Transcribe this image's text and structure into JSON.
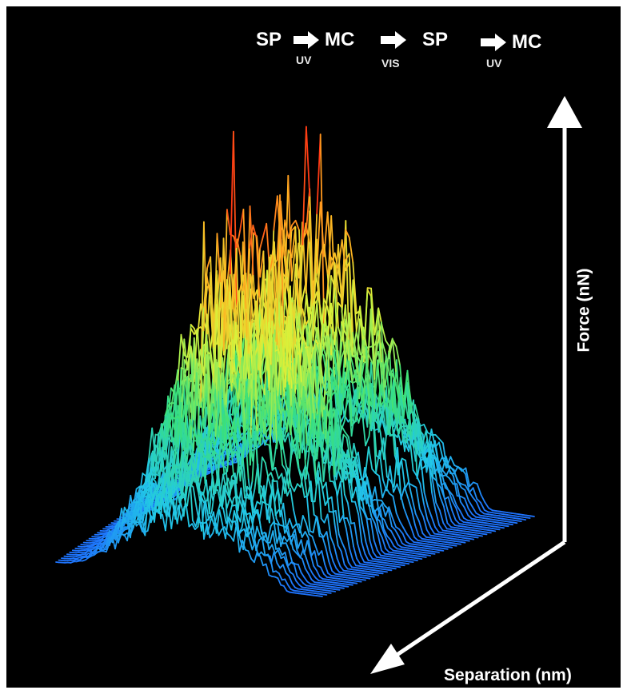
{
  "chart_data": {
    "type": "line",
    "title": "",
    "xlabel": "Separation (nm)",
    "ylabel": "Force (nN)",
    "grid": false,
    "legend": "none",
    "colormap": [
      "#2a1aa8",
      "#1e6cff",
      "#22c8e6",
      "#39e07a",
      "#d9f23a",
      "#ffb020",
      "#ff3a14"
    ],
    "sequence": [
      {
        "state": "SP",
        "stimulus": ""
      },
      {
        "state": "MC",
        "stimulus": "UV"
      },
      {
        "state": "SP",
        "stimulus": "VIS"
      },
      {
        "state": "MC",
        "stimulus": "UV"
      }
    ],
    "peak_force_relative_per_curve": [
      0.22,
      0.25,
      0.27,
      0.3,
      0.31,
      0.33,
      0.34,
      0.36,
      0.38,
      0.4,
      0.45,
      0.55,
      0.62,
      0.68,
      0.75,
      0.8,
      0.85,
      0.9,
      0.95,
      1.0,
      0.92,
      0.85,
      0.78,
      0.7,
      0.6,
      0.5,
      0.45,
      0.42,
      0.4,
      0.38,
      0.45,
      0.55,
      0.62,
      0.7,
      0.78,
      0.85,
      0.92,
      0.97,
      0.9,
      0.82,
      0.72,
      0.6,
      0.5,
      0.45,
      0.42,
      0.4,
      0.38,
      0.36,
      0.35,
      0.33
    ]
  }
}
